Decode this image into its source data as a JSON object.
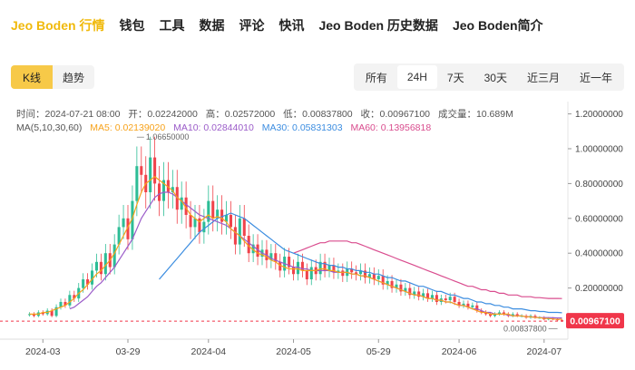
{
  "nav": {
    "items": [
      {
        "label": "Jeo Boden 行情",
        "active": true
      },
      {
        "label": "钱包"
      },
      {
        "label": "工具"
      },
      {
        "label": "数据"
      },
      {
        "label": "评论"
      },
      {
        "label": "快讯"
      },
      {
        "label": "Jeo Boden 历史数据"
      },
      {
        "label": "Jeo Boden简介"
      }
    ]
  },
  "chart_type_tabs": [
    "K线",
    "趋势"
  ],
  "range_tabs": [
    "所有",
    "24H",
    "7天",
    "30天",
    "近三月",
    "近一年"
  ],
  "range_active": "24H",
  "info": {
    "time": "时间：2024-07-21 08:00",
    "open": "开：0.02242000",
    "high": "高：0.02572000",
    "low": "低：0.00837800",
    "close": "收：0.00967100",
    "volume": "成交量：10.689M",
    "ma_label": "MA(5,10,30,60)",
    "ma5": "MA5: 0.02139020",
    "ma10": "MA10: 0.02844010",
    "ma30": "MA30: 0.05831303",
    "ma60": "MA60: 0.13956818"
  },
  "colors": {
    "accent": "#f0b90b",
    "up": "#2dbd96",
    "down": "#f0434b",
    "ma5": "#f7a21a",
    "ma10": "#9b5cc9",
    "ma30": "#3c8de0",
    "ma60": "#d94c8e",
    "price_tag": "#f0364a"
  },
  "chart_data": {
    "type": "candlestick",
    "ylim": [
      0,
      1.25
    ],
    "y_ticks": [
      "1.20000000",
      "1.00000000",
      "0.80000000",
      "0.60000000",
      "0.40000000",
      "0.20000000"
    ],
    "y_tick_values": [
      1.2,
      1.0,
      0.8,
      0.6,
      0.4,
      0.2
    ],
    "x_ticks": [
      "2024-03",
      "03-29",
      "2024-04",
      "2024-05",
      "05-29",
      "2024-06",
      "2024-07"
    ],
    "high_label": "1.06650000",
    "low_label": "0.00837800",
    "current_price": "0.00967100",
    "current_value": 0.009671,
    "closes": [
      0.05,
      0.04,
      0.06,
      0.05,
      0.07,
      0.04,
      0.09,
      0.12,
      0.1,
      0.16,
      0.14,
      0.2,
      0.25,
      0.22,
      0.3,
      0.35,
      0.28,
      0.4,
      0.32,
      0.45,
      0.55,
      0.6,
      0.48,
      0.7,
      0.9,
      0.85,
      0.75,
      0.95,
      0.8,
      0.7,
      0.82,
      0.75,
      0.78,
      0.65,
      0.72,
      0.62,
      0.55,
      0.6,
      0.52,
      0.58,
      0.7,
      0.6,
      0.65,
      0.58,
      0.62,
      0.55,
      0.45,
      0.6,
      0.5,
      0.4,
      0.45,
      0.38,
      0.42,
      0.36,
      0.4,
      0.35,
      0.3,
      0.38,
      0.32,
      0.28,
      0.35,
      0.3,
      0.25,
      0.32,
      0.28,
      0.35,
      0.3,
      0.33,
      0.29,
      0.3,
      0.27,
      0.31,
      0.29,
      0.28,
      0.3,
      0.26,
      0.28,
      0.25,
      0.27,
      0.22,
      0.24,
      0.2,
      0.22,
      0.18,
      0.2,
      0.16,
      0.18,
      0.15,
      0.17,
      0.14,
      0.16,
      0.12,
      0.14,
      0.13,
      0.15,
      0.12,
      0.1,
      0.11,
      0.09,
      0.1,
      0.07,
      0.06,
      0.05,
      0.04,
      0.05,
      0.06,
      0.05,
      0.04,
      0.05,
      0.04,
      0.04,
      0.03,
      0.04,
      0.03,
      0.03,
      0.02,
      0.025,
      0.02,
      0.015,
      0.0097
    ],
    "ma5": [
      0.05,
      0.05,
      0.05,
      0.06,
      0.06,
      0.07,
      0.08,
      0.09,
      0.1,
      0.12,
      0.14,
      0.17,
      0.19,
      0.22,
      0.25,
      0.28,
      0.3,
      0.33,
      0.36,
      0.4,
      0.45,
      0.5,
      0.55,
      0.6,
      0.68,
      0.75,
      0.8,
      0.82,
      0.84,
      0.82,
      0.8,
      0.78,
      0.76,
      0.72,
      0.7,
      0.66,
      0.62,
      0.6,
      0.58,
      0.6,
      0.62,
      0.6,
      0.61,
      0.6,
      0.58,
      0.54,
      0.52,
      0.5,
      0.47,
      0.44,
      0.42,
      0.4,
      0.39,
      0.38,
      0.36,
      0.35,
      0.33,
      0.32,
      0.31,
      0.31,
      0.31,
      0.3,
      0.3,
      0.3,
      0.3,
      0.31,
      0.31,
      0.3,
      0.3,
      0.29,
      0.29,
      0.29,
      0.28,
      0.28,
      0.27,
      0.27,
      0.26,
      0.25,
      0.24,
      0.23,
      0.22,
      0.21,
      0.2,
      0.19,
      0.18,
      0.17,
      0.16,
      0.16,
      0.15,
      0.14,
      0.14,
      0.13,
      0.13,
      0.12,
      0.12,
      0.11,
      0.1,
      0.1,
      0.09,
      0.08,
      0.07,
      0.06,
      0.06,
      0.05,
      0.05,
      0.05,
      0.05,
      0.05,
      0.04,
      0.04,
      0.04,
      0.035,
      0.035,
      0.03,
      0.03,
      0.025,
      0.025,
      0.022,
      0.02,
      0.021
    ],
    "ma10": [
      null,
      null,
      null,
      null,
      null,
      null,
      null,
      null,
      null,
      0.08,
      0.09,
      0.11,
      0.13,
      0.15,
      0.18,
      0.21,
      0.23,
      0.26,
      0.29,
      0.32,
      0.36,
      0.4,
      0.44,
      0.48,
      0.54,
      0.6,
      0.64,
      0.68,
      0.72,
      0.74,
      0.75,
      0.75,
      0.74,
      0.72,
      0.7,
      0.68,
      0.66,
      0.64,
      0.62,
      0.61,
      0.6,
      0.59,
      0.58,
      0.57,
      0.56,
      0.54,
      0.52,
      0.5,
      0.48,
      0.46,
      0.44,
      0.42,
      0.4,
      0.39,
      0.37,
      0.36,
      0.35,
      0.34,
      0.33,
      0.32,
      0.32,
      0.31,
      0.31,
      0.3,
      0.3,
      0.3,
      0.3,
      0.3,
      0.29,
      0.29,
      0.29,
      0.29,
      0.28,
      0.28,
      0.27,
      0.27,
      0.26,
      0.25,
      0.24,
      0.23,
      0.22,
      0.21,
      0.2,
      0.19,
      0.18,
      0.17,
      0.16,
      0.16,
      0.15,
      0.14,
      0.14,
      0.13,
      0.13,
      0.12,
      0.12,
      0.11,
      0.1,
      0.1,
      0.09,
      0.08,
      0.08,
      0.07,
      0.06,
      0.06,
      0.05,
      0.05,
      0.05,
      0.045,
      0.04,
      0.04,
      0.04,
      0.035,
      0.035,
      0.032,
      0.03,
      0.03,
      0.03,
      0.029,
      0.028,
      0.028
    ],
    "ma30": [
      null,
      null,
      null,
      null,
      null,
      null,
      null,
      null,
      null,
      null,
      null,
      null,
      null,
      null,
      null,
      null,
      null,
      null,
      null,
      null,
      null,
      null,
      null,
      null,
      null,
      null,
      null,
      null,
      null,
      0.25,
      0.28,
      0.31,
      0.34,
      0.37,
      0.4,
      0.43,
      0.46,
      0.49,
      0.52,
      0.54,
      0.56,
      0.58,
      0.6,
      0.61,
      0.62,
      0.63,
      0.62,
      0.61,
      0.6,
      0.58,
      0.56,
      0.54,
      0.52,
      0.5,
      0.48,
      0.46,
      0.44,
      0.42,
      0.41,
      0.4,
      0.39,
      0.38,
      0.37,
      0.36,
      0.35,
      0.34,
      0.34,
      0.33,
      0.33,
      0.32,
      0.32,
      0.31,
      0.31,
      0.3,
      0.3,
      0.29,
      0.29,
      0.28,
      0.28,
      0.27,
      0.26,
      0.26,
      0.25,
      0.24,
      0.24,
      0.23,
      0.22,
      0.21,
      0.21,
      0.2,
      0.19,
      0.18,
      0.18,
      0.17,
      0.16,
      0.16,
      0.15,
      0.14,
      0.14,
      0.13,
      0.12,
      0.12,
      0.11,
      0.11,
      0.1,
      0.1,
      0.09,
      0.09,
      0.08,
      0.08,
      0.08,
      0.075,
      0.07,
      0.07,
      0.065,
      0.065,
      0.06,
      0.06,
      0.06,
      0.058
    ],
    "ma60": [
      null,
      null,
      null,
      null,
      null,
      null,
      null,
      null,
      null,
      null,
      null,
      null,
      null,
      null,
      null,
      null,
      null,
      null,
      null,
      null,
      null,
      null,
      null,
      null,
      null,
      null,
      null,
      null,
      null,
      null,
      null,
      null,
      null,
      null,
      null,
      null,
      null,
      null,
      null,
      null,
      null,
      null,
      null,
      null,
      null,
      null,
      null,
      null,
      null,
      null,
      null,
      null,
      null,
      null,
      null,
      null,
      null,
      null,
      null,
      0.4,
      0.41,
      0.42,
      0.43,
      0.44,
      0.45,
      0.46,
      0.46,
      0.47,
      0.47,
      0.47,
      0.47,
      0.47,
      0.46,
      0.46,
      0.45,
      0.44,
      0.43,
      0.42,
      0.41,
      0.4,
      0.39,
      0.38,
      0.37,
      0.36,
      0.35,
      0.34,
      0.33,
      0.32,
      0.31,
      0.3,
      0.29,
      0.28,
      0.27,
      0.26,
      0.25,
      0.24,
      0.23,
      0.22,
      0.21,
      0.21,
      0.2,
      0.19,
      0.19,
      0.18,
      0.18,
      0.17,
      0.17,
      0.16,
      0.16,
      0.16,
      0.15,
      0.15,
      0.15,
      0.145,
      0.145,
      0.142,
      0.14,
      0.14,
      0.14,
      0.1396
    ]
  }
}
